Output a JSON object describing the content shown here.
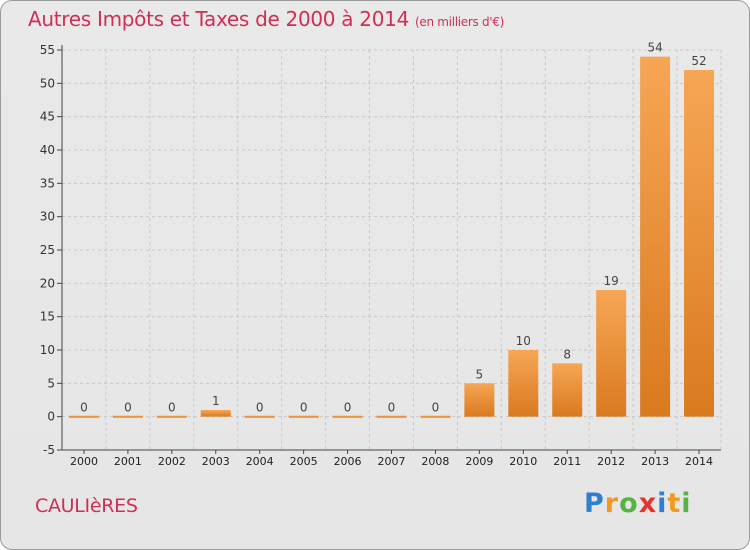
{
  "title": "Autres Impôts et Taxes de 2000 à 2014",
  "subtitle": "(en milliers d'€)",
  "location": "CAULIèRES",
  "brand": {
    "text": "Proxiti"
  },
  "colors": {
    "bar_light": "#f7a655",
    "bar_dark": "#d97a1f",
    "title": "#cf2f55"
  },
  "chart_data": {
    "type": "bar",
    "title": "Autres Impôts et Taxes de 2000 à 2014",
    "subtitle": "(en milliers d'€)",
    "categories": [
      "2000",
      "2001",
      "2002",
      "2003",
      "2004",
      "2005",
      "2006",
      "2007",
      "2008",
      "2009",
      "2010",
      "2011",
      "2012",
      "2013",
      "2014"
    ],
    "values": [
      0,
      0,
      0,
      1,
      0,
      0,
      0,
      0,
      0,
      5,
      10,
      8,
      19,
      54,
      52
    ],
    "value_labels": [
      "0",
      "0",
      "0",
      "1",
      "0",
      "0",
      "0",
      "0",
      "0",
      "5",
      "10",
      "8",
      "19",
      "54",
      "52"
    ],
    "ylim": [
      -5,
      55
    ],
    "yticks": [
      -5,
      0,
      5,
      10,
      15,
      20,
      25,
      30,
      35,
      40,
      45,
      50,
      55
    ],
    "grid": true
  }
}
